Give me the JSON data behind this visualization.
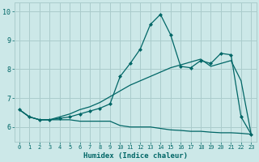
{
  "xlabel": "Humidex (Indice chaleur)",
  "xlim": [
    -0.5,
    23.5
  ],
  "ylim": [
    5.5,
    10.3
  ],
  "yticks": [
    6,
    7,
    8,
    9,
    10
  ],
  "xticks": [
    0,
    1,
    2,
    3,
    4,
    5,
    6,
    7,
    8,
    9,
    10,
    11,
    12,
    13,
    14,
    15,
    16,
    17,
    18,
    19,
    20,
    21,
    22,
    23
  ],
  "bg_color": "#cce8e8",
  "grid_color": "#aacccc",
  "line_color": "#006666",
  "line1_x": [
    0,
    1,
    2,
    3,
    4,
    5,
    6,
    7,
    8,
    9,
    10,
    11,
    12,
    13,
    14,
    15,
    16,
    17,
    18,
    19,
    20,
    21,
    22,
    23
  ],
  "line1_y": [
    6.6,
    6.35,
    6.25,
    6.25,
    6.3,
    6.35,
    6.45,
    6.55,
    6.65,
    6.8,
    7.75,
    8.2,
    8.7,
    9.55,
    9.9,
    9.2,
    8.1,
    8.05,
    8.3,
    8.2,
    8.55,
    8.5,
    6.35,
    5.75
  ],
  "line2_x": [
    0,
    1,
    2,
    3,
    4,
    5,
    6,
    7,
    8,
    9,
    10,
    11,
    12,
    13,
    14,
    15,
    16,
    17,
    18,
    19,
    20,
    21,
    22,
    23
  ],
  "line2_y": [
    6.6,
    6.35,
    6.25,
    6.25,
    6.35,
    6.45,
    6.6,
    6.7,
    6.85,
    7.05,
    7.25,
    7.45,
    7.6,
    7.75,
    7.9,
    8.05,
    8.15,
    8.25,
    8.35,
    8.1,
    8.2,
    8.3,
    7.6,
    5.75
  ],
  "line3_x": [
    0,
    1,
    2,
    3,
    4,
    5,
    6,
    7,
    8,
    9,
    10,
    11,
    12,
    13,
    14,
    15,
    16,
    17,
    18,
    19,
    20,
    21,
    22,
    23
  ],
  "line3_y": [
    6.6,
    6.35,
    6.25,
    6.25,
    6.25,
    6.25,
    6.2,
    6.2,
    6.2,
    6.2,
    6.05,
    6.0,
    6.0,
    6.0,
    5.95,
    5.9,
    5.88,
    5.85,
    5.85,
    5.82,
    5.8,
    5.8,
    5.78,
    5.75
  ]
}
